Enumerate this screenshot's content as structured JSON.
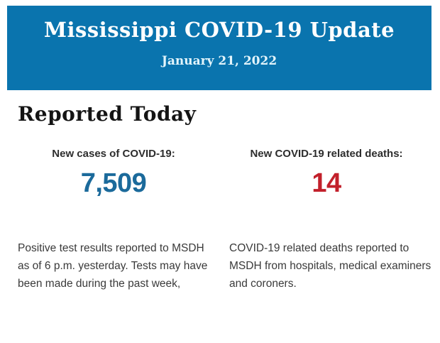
{
  "banner": {
    "title": "Mississippi COVID-19 Update",
    "date": "January 21, 2022",
    "background_color": "#0a74ae",
    "title_color": "#ffffff",
    "date_color": "#e2f4fb"
  },
  "section": {
    "heading": "Reported Today"
  },
  "stats": {
    "cases": {
      "label": "New cases of COVID-19:",
      "value": "7,509",
      "value_color": "#1b6a9b",
      "description": "Positive test results reported to MSDH as of 6 p.m. yesterday. Tests may have been made during the past week,"
    },
    "deaths": {
      "label": "New COVID-19 related deaths:",
      "value": "14",
      "value_color": "#c2202b",
      "description": "COVID-19 related deaths reported to MSDH from hospitals, medical examiners and coroners."
    }
  }
}
